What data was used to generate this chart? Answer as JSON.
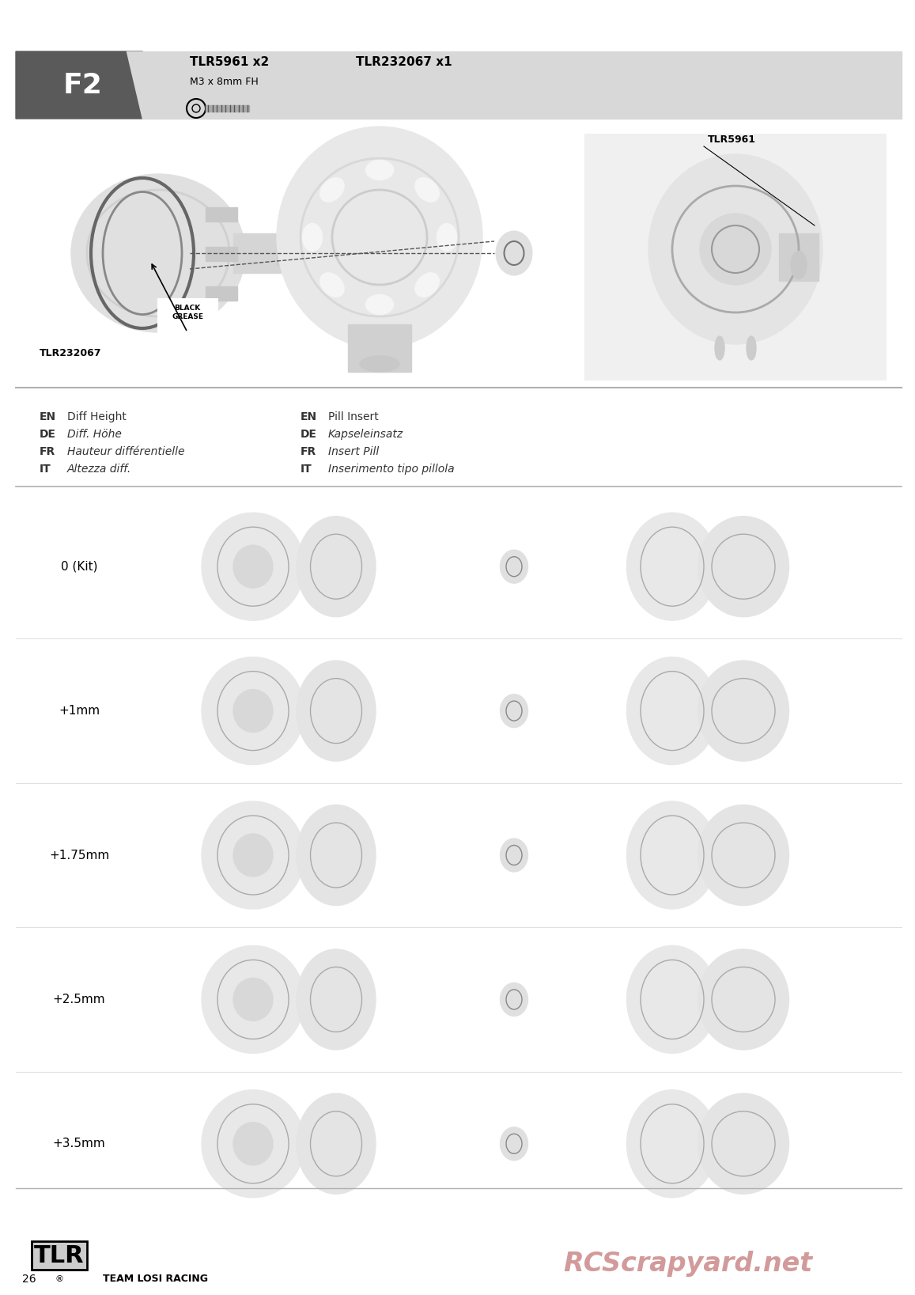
{
  "page_num": "26",
  "page_label": "F2",
  "bg_color": "#ffffff",
  "header_dark_color": "#5a5a5a",
  "header_light_color": "#d8d8d8",
  "part1_code": "TLR5961 x2",
  "part1_sub": "M3 x 8mm FH",
  "part2_code": "TLR232067 x1",
  "label1_en": "EN  Diff Height",
  "label1_de": "DE  Diff. Höhe",
  "label1_fr": "FR  Hauteur différentielle",
  "label1_it": "IT  Altezza diff.",
  "label2_en": "EN  Pill Insert",
  "label2_de": "DE  Kapseleinsatz",
  "label2_fr": "FR  Insert Pill",
  "label2_it": "IT  Inserimento tipo pillola",
  "rows": [
    "0 (Kit)",
    "+1mm",
    "+1.75mm",
    "+2.5mm",
    "+3.5mm"
  ],
  "watermark": "RCScrapyard.net",
  "watermark_color": "#c07070",
  "tlr_brand": "TEAM LOSI RACING",
  "separator_color": "#b0b0b0",
  "black_grease_label": "BLACK\nGREASE",
  "tlr5961_label": "TLR5961",
  "tlr232067_label": "TLR232067"
}
